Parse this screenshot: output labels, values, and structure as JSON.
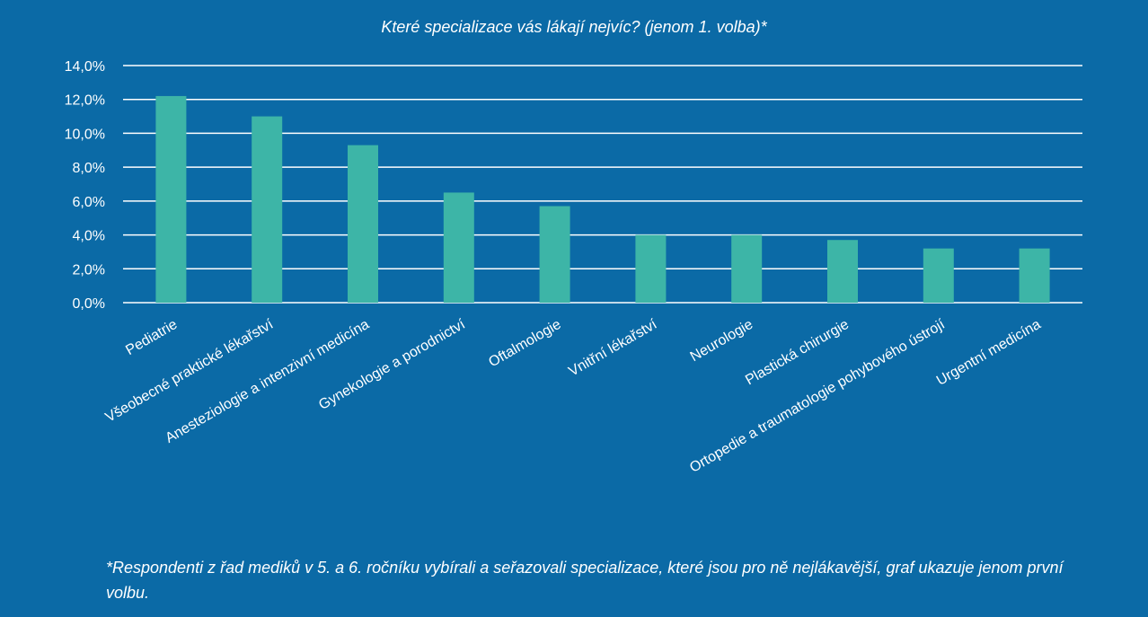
{
  "chart_data": {
    "type": "bar",
    "title": "Které specializace vás lákají nejvíc? (jenom 1. volba)*",
    "categories": [
      "Pediatrie",
      "Všeobecné praktické lékařství",
      "Anesteziologie a intenzivní medicína",
      "Gynekologie a porodnictví",
      "Oftalmologie",
      "Vnitřní lékařství",
      "Neurologie",
      "Plastická chirurgie",
      "Ortopedie a traumatologie pohybového ústrojí",
      "Urgentní medicína"
    ],
    "values": [
      12.2,
      11.0,
      9.3,
      6.5,
      5.7,
      4.0,
      4.0,
      3.7,
      3.2,
      3.2
    ],
    "ylim": [
      0,
      14
    ],
    "yticks": [
      "0,0%",
      "2,0%",
      "4,0%",
      "6,0%",
      "8,0%",
      "10,0%",
      "12,0%",
      "14,0%"
    ],
    "grid": true,
    "legend": "none",
    "colors": {
      "background": "#0B6AA6",
      "bar": "#3DB5A7",
      "grid": "#ffffff",
      "text": "#ffffff"
    }
  },
  "footnote": "*Respondenti z řad mediků v 5. a 6. ročníku vybírali a seřazovali specializace, které jsou pro ně nejlákavější, graf ukazuje jenom první volbu."
}
